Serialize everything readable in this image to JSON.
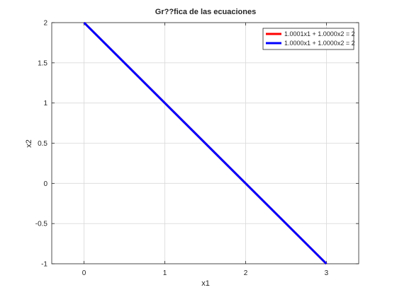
{
  "chart_data": {
    "type": "line",
    "title": "Gr??fica de las ecuaciones",
    "xlabel": "x1",
    "ylabel": "x2",
    "xlim": [
      -0.4,
      3.4
    ],
    "ylim": [
      -1,
      2
    ],
    "xticks": [
      0,
      1,
      2,
      3
    ],
    "xtick_labels": [
      "0",
      "1",
      "2",
      "3"
    ],
    "yticks": [
      -1,
      -0.5,
      0,
      0.5,
      1,
      1.5,
      2
    ],
    "ytick_labels": [
      "-1",
      "-0.5",
      "0",
      "0.5",
      "1",
      "1.5",
      "2"
    ],
    "grid": true,
    "legend_position": "top-right",
    "series": [
      {
        "name": "1.0001x1 + 1.0000x2 = 2",
        "color": "#ff0000",
        "x": [
          0,
          3
        ],
        "y": [
          2,
          -1.0003
        ]
      },
      {
        "name": "1.0000x1 + 1.0000x2 = 2",
        "color": "#0000ff",
        "x": [
          0,
          3
        ],
        "y": [
          2,
          -1
        ]
      }
    ]
  }
}
